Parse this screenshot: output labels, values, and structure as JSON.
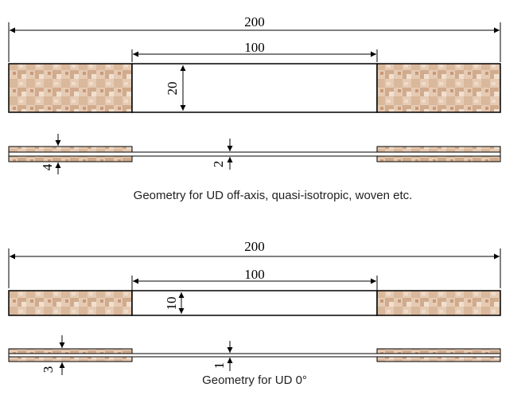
{
  "colors": {
    "tab_base": "#e6cbb4",
    "tab_dark": "#c79a7a",
    "tab_light": "#f0e0d0",
    "line": "#000000",
    "background": "#ffffff"
  },
  "top": {
    "overall_length": "200",
    "gauge_length": "100",
    "width": "20",
    "tab_thickness": "4",
    "specimen_thickness": "2",
    "caption": "Geometry for UD off-axis, quasi-isotropic, woven etc."
  },
  "bottom": {
    "overall_length": "200",
    "gauge_length": "100",
    "width": "10",
    "tab_thickness": "3",
    "specimen_thickness": "1",
    "caption": "Geometry for UD 0°"
  }
}
